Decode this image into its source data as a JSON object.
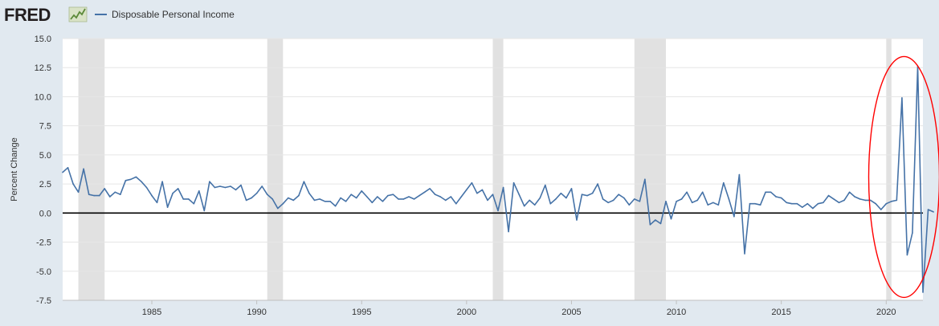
{
  "brand": {
    "logo": "FRED",
    "logo_icon": "trend-line-icon"
  },
  "colors": {
    "series": "#4572a7",
    "recession": "#e1e1e1",
    "zero_line": "#000000",
    "annotation": "#ff0000",
    "plot_bg": "#ffffff",
    "page_bg": "#e1e9f0"
  },
  "chart_data": {
    "type": "line",
    "title": "",
    "ylabel": "Percent Change",
    "ylim": [
      -7.5,
      15.0
    ],
    "yticks": [
      15.0,
      12.5,
      10.0,
      7.5,
      5.0,
      2.5,
      0.0,
      -2.5,
      -5.0,
      -7.5
    ],
    "ytick_labels": [
      "15.0",
      "12.5",
      "10.0",
      "7.5",
      "5.0",
      "2.5",
      "0.0",
      "-2.5",
      "-5.0",
      "-7.5"
    ],
    "xlim": [
      1980.75,
      2021.75
    ],
    "xticks": [
      1985,
      1990,
      1995,
      2000,
      2005,
      2010,
      2015,
      2020
    ],
    "xtick_labels": [
      "1985",
      "1990",
      "1995",
      "2000",
      "2005",
      "2010",
      "2015",
      "2020"
    ],
    "legend_position": "top-left",
    "grid": "horizontal",
    "recessions": [
      [
        1981.5,
        1982.75
      ],
      [
        1990.5,
        1991.25
      ],
      [
        2001.25,
        2001.75
      ],
      [
        2008.0,
        2009.5
      ],
      [
        2020.0,
        2020.25
      ]
    ],
    "zero_line": 0,
    "annotation": "red-ellipse-around-2020-2021",
    "series": [
      {
        "name": "Disposable Personal Income",
        "x_start": 1980.75,
        "x_step": 0.25,
        "values": [
          3.5,
          3.9,
          2.5,
          1.8,
          3.8,
          1.6,
          1.5,
          1.5,
          2.1,
          1.4,
          1.8,
          1.6,
          2.8,
          2.9,
          3.1,
          2.7,
          2.2,
          1.5,
          0.9,
          2.7,
          0.5,
          1.7,
          2.1,
          1.2,
          1.2,
          0.8,
          1.9,
          0.2,
          2.7,
          2.2,
          2.3,
          2.2,
          2.3,
          2.0,
          2.4,
          1.1,
          1.3,
          1.7,
          2.3,
          1.6,
          1.2,
          0.4,
          0.8,
          1.3,
          1.1,
          1.5,
          2.7,
          1.7,
          1.1,
          1.2,
          1.0,
          1.0,
          0.6,
          1.3,
          1.0,
          1.6,
          1.3,
          1.9,
          1.4,
          0.9,
          1.4,
          1.0,
          1.5,
          1.6,
          1.2,
          1.2,
          1.4,
          1.2,
          1.5,
          1.8,
          2.1,
          1.6,
          1.4,
          1.1,
          1.4,
          0.8,
          1.4,
          2.0,
          2.6,
          1.7,
          2.0,
          1.1,
          1.6,
          0.2,
          2.2,
          -1.6,
          2.6,
          1.6,
          0.6,
          1.1,
          0.7,
          1.3,
          2.4,
          0.8,
          1.2,
          1.7,
          1.3,
          2.1,
          -0.6,
          1.6,
          1.5,
          1.7,
          2.5,
          1.2,
          0.9,
          1.1,
          1.6,
          1.3,
          0.7,
          1.2,
          1.0,
          2.9,
          -1.0,
          -0.6,
          -0.9,
          1.0,
          -0.5,
          1.0,
          1.2,
          1.8,
          0.9,
          1.1,
          1.8,
          0.7,
          0.9,
          0.7,
          2.6,
          1.2,
          -0.3,
          3.3,
          -3.5,
          0.8,
          0.8,
          0.7,
          1.8,
          1.8,
          1.4,
          1.3,
          0.9,
          0.8,
          0.8,
          0.5,
          0.8,
          0.4,
          0.8,
          0.9,
          1.5,
          1.2,
          0.9,
          1.1,
          1.8,
          1.4,
          1.2,
          1.1,
          1.1,
          0.8,
          0.3,
          0.8,
          1.0,
          1.1,
          9.9,
          -3.6,
          -1.7,
          12.6,
          -6.8,
          0.3,
          0.1
        ]
      }
    ]
  }
}
